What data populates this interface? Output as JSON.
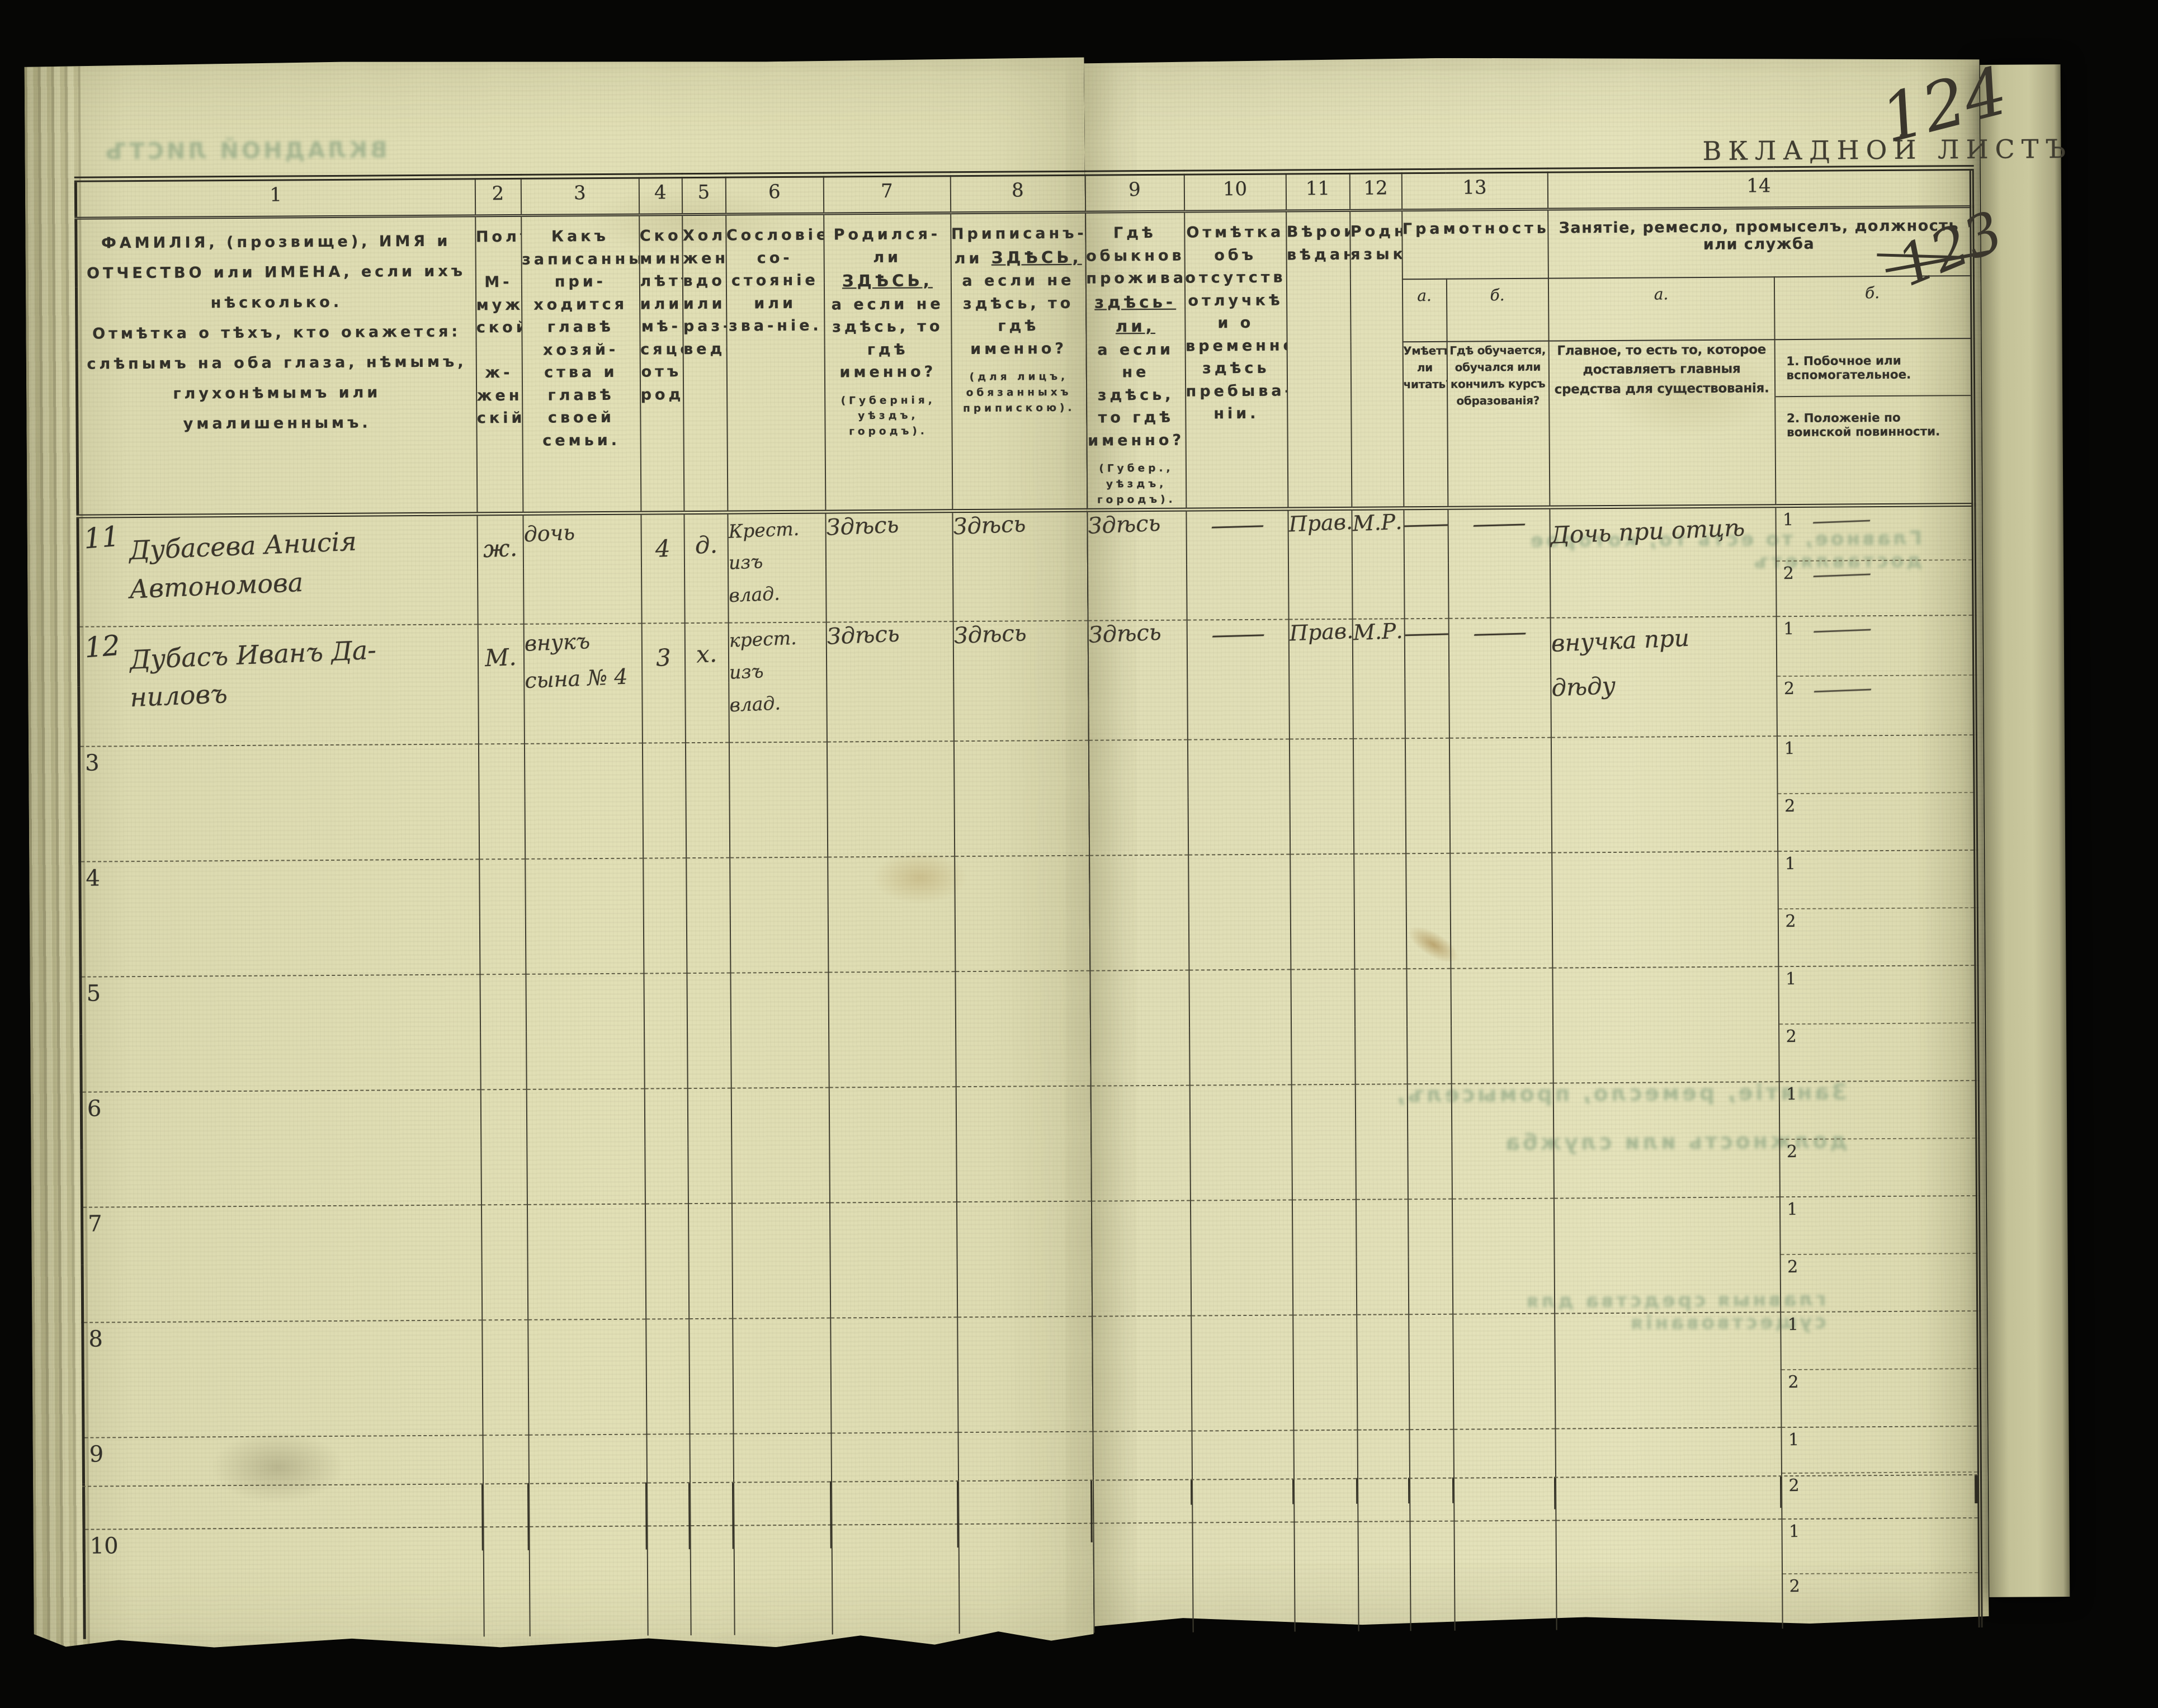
{
  "colors": {
    "background": "#060605",
    "paper": "#e2e0b6",
    "printed_ink": "#33312a",
    "handwriting_ink": "#3a362c",
    "bleedthrough_green": "#7d9876"
  },
  "page_label": {
    "printed": "ВКЛАДНОЙ ЛИСТЪ",
    "sheet_number_handwritten": "124",
    "crossed_out_number": "123"
  },
  "subcell_labels": {
    "first": "1",
    "second": "2"
  },
  "header": {
    "n1": "1",
    "n2": "2",
    "n3": "3",
    "n4": "4",
    "n5": "5",
    "n6": "6",
    "n7": "7",
    "n8": "8",
    "n9": "9",
    "n10": "10",
    "n11": "11",
    "n12": "12",
    "n13": "13",
    "n14": "14",
    "c1p1": "ФАМИЛІЯ, (прозвище), ИМЯ и ОТЧЕСТВО или ИМЕНА, если ихъ нѣсколько.",
    "c1p2": "Отмѣтка о тѣхъ, кто окажется: слѣпымъ на оба глаза, нѣмымъ, глухонѣмымъ или умалишеннымъ.",
    "c2a": "Полъ.",
    "c2b": "М-муж-ской.",
    "c2c": "ж-жен-скій.",
    "c3": "Какъ записанный при-ходится главѣ хозяй-ства и главѣ своей семьи.",
    "c4": "Сколько минуло лѣтъ или мѣ-сяцевъ отъ роду.",
    "c5": "Холостъ, женатъ, вдовъ или раз-веденъ.",
    "c6": "Сословіе, со-стояніе или зва-ніе.",
    "c7_1": "Родился-ли",
    "c7_em": "ЗДѢСЬ,",
    "c7_2": "а если не здѣсь, то гдѣ именно?",
    "c7_note": "(Губернія, уѣздъ, городъ).",
    "c8_1": "Приписанъ-ли",
    "c8_em": "ЗДѢСЬ,",
    "c8_2": "а если не здѣсь, то гдѣ именно?",
    "c8_note": "(для лицъ, обязанныхъ припискою).",
    "c9_1": "Гдѣ обыкновенно проживаетъ:",
    "c9_em": "здѣсь-ли,",
    "c9_2": "а если не здѣсь, то гдѣ именно?",
    "c9_note": "(Губер., уѣздъ, городъ).",
    "c10": "Отмѣтка объ отсутствіи, отлучкѣ и о временномъ здѣсь пребыва-ніи.",
    "c11": "Вѣроиспо-вѣданіе.",
    "c12": "Родной языкъ.",
    "c13": "Грамотность.",
    "c13a_label": "а.",
    "c13b_label": "б.",
    "c13a": "Умѣетъ-ли читать?",
    "c13b": "Гдѣ обучается, обучался или кончилъ курсъ образованія?",
    "c14": "Занятіе, ремесло, промыселъ, должность или служба",
    "c14a_label": "а.",
    "c14b_label": "б.",
    "c14a": "Главное, то есть то, которое доставляетъ главныя средства для существованія.",
    "c14b1": "1. Побочное или вспомогательное.",
    "c14b2": "2. Положеніе по воинской повинности."
  },
  "rows": [
    {
      "no": "11",
      "hand": true,
      "name1": "Дубасева Анисія",
      "name2": "Автономова",
      "sex": "ж.",
      "rel1": "дочь",
      "rel2": "",
      "age": "4",
      "mar": "д.",
      "est1": "Крест.",
      "est2": "изъ",
      "est3": "влад.",
      "born": "Здѣсь",
      "reg": "Здѣсь",
      "res": "Здѣсь",
      "abs": "—",
      "faith": "Прав.",
      "lang": "М.Р.",
      "read": "—",
      "school": "—",
      "occ1": "Дочь при отцѣ",
      "occ2": "",
      "side1": "—",
      "side2": "—"
    },
    {
      "no": "12",
      "hand": true,
      "name1": "Дубасъ Иванъ Да-",
      "name2": "ниловъ",
      "sex": "М.",
      "rel1": "внукъ",
      "rel2": "сына № 4",
      "age": "3",
      "mar": "х.",
      "est1": "крест.",
      "est2": "изъ",
      "est3": "влад.",
      "born": "Здѣсь",
      "reg": "Здѣсь",
      "res": "Здѣсь",
      "abs": "—",
      "faith": "Прав.",
      "lang": "М.Р.",
      "read": "—",
      "school": "—",
      "occ1": "внучка при",
      "occ2": "дѣду",
      "side1": "—",
      "side2": "—"
    },
    {
      "no": "3",
      "hand": false,
      "name1": "",
      "name2": "",
      "sex": "",
      "rel1": "",
      "rel2": "",
      "age": "",
      "mar": "",
      "est1": "",
      "est2": "",
      "est3": "",
      "born": "",
      "reg": "",
      "res": "",
      "abs": "",
      "faith": "",
      "lang": "",
      "read": "",
      "school": "",
      "occ1": "",
      "occ2": "",
      "side1": "",
      "side2": ""
    },
    {
      "no": "4",
      "hand": false,
      "name1": "",
      "name2": "",
      "sex": "",
      "rel1": "",
      "rel2": "",
      "age": "",
      "mar": "",
      "est1": "",
      "est2": "",
      "est3": "",
      "born": "",
      "reg": "",
      "res": "",
      "abs": "",
      "faith": "",
      "lang": "",
      "read": "",
      "school": "",
      "occ1": "",
      "occ2": "",
      "side1": "",
      "side2": ""
    },
    {
      "no": "5",
      "hand": false,
      "name1": "",
      "name2": "",
      "sex": "",
      "rel1": "",
      "rel2": "",
      "age": "",
      "mar": "",
      "est1": "",
      "est2": "",
      "est3": "",
      "born": "",
      "reg": "",
      "res": "",
      "abs": "",
      "faith": "",
      "lang": "",
      "read": "",
      "school": "",
      "occ1": "",
      "occ2": "",
      "side1": "",
      "side2": ""
    },
    {
      "no": "6",
      "hand": false,
      "name1": "",
      "name2": "",
      "sex": "",
      "rel1": "",
      "rel2": "",
      "age": "",
      "mar": "",
      "est1": "",
      "est2": "",
      "est3": "",
      "born": "",
      "reg": "",
      "res": "",
      "abs": "",
      "faith": "",
      "lang": "",
      "read": "",
      "school": "",
      "occ1": "",
      "occ2": "",
      "side1": "",
      "side2": ""
    },
    {
      "no": "7",
      "hand": false,
      "name1": "",
      "name2": "",
      "sex": "",
      "rel1": "",
      "rel2": "",
      "age": "",
      "mar": "",
      "est1": "",
      "est2": "",
      "est3": "",
      "born": "",
      "reg": "",
      "res": "",
      "abs": "",
      "faith": "",
      "lang": "",
      "read": "",
      "school": "",
      "occ1": "",
      "occ2": "",
      "side1": "",
      "side2": ""
    },
    {
      "no": "8",
      "hand": false,
      "name1": "",
      "name2": "",
      "sex": "",
      "rel1": "",
      "rel2": "",
      "age": "",
      "mar": "",
      "est1": "",
      "est2": "",
      "est3": "",
      "born": "",
      "reg": "",
      "res": "",
      "abs": "",
      "faith": "",
      "lang": "",
      "read": "",
      "school": "",
      "occ1": "",
      "occ2": "",
      "side1": "",
      "side2": ""
    },
    {
      "no": "9",
      "hand": false,
      "name1": "",
      "name2": "",
      "sex": "",
      "rel1": "",
      "rel2": "",
      "age": "",
      "mar": "",
      "est1": "",
      "est2": "",
      "est3": "",
      "born": "",
      "reg": "",
      "res": "",
      "abs": "",
      "faith": "",
      "lang": "",
      "read": "",
      "school": "",
      "occ1": "",
      "occ2": "",
      "side1": "",
      "side2": ""
    },
    {
      "no": "10",
      "hand": false,
      "name1": "",
      "name2": "",
      "sex": "",
      "rel1": "",
      "rel2": "",
      "age": "",
      "mar": "",
      "est1": "",
      "est2": "",
      "est3": "",
      "born": "",
      "reg": "",
      "res": "",
      "abs": "",
      "faith": "",
      "lang": "",
      "read": "",
      "school": "",
      "occ1": "",
      "occ2": "",
      "side1": "",
      "side2": ""
    }
  ],
  "bleedthrough": {
    "g1": "ВКЛАДНОЙ ЛИСТЪ",
    "g2": "Занятіе, ремесло, промыселъ, должность или служба",
    "g3": "Главное, то есть то, которое доставляетъ",
    "g4": "главныя средства для существованія"
  }
}
